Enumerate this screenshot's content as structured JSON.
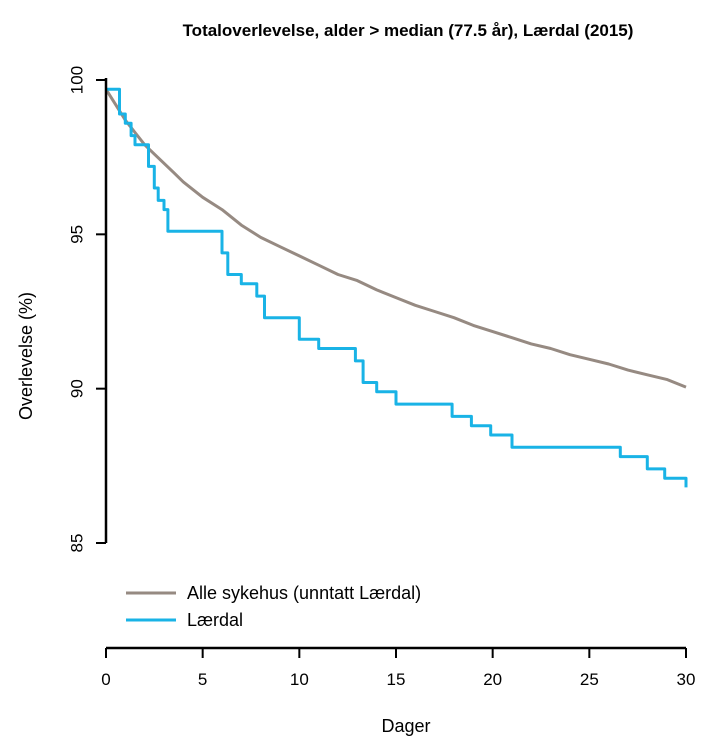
{
  "chart_data": {
    "type": "line",
    "title": "Totaloverlevelse, alder > median (77.5 år), Lærdal (2015)",
    "xlabel": "Dager",
    "ylabel": "Overlevelse (%)",
    "xlim": [
      0,
      30
    ],
    "ylim": [
      85,
      100
    ],
    "xticks": [
      0,
      5,
      10,
      15,
      20,
      25,
      30
    ],
    "yticks": [
      85,
      90,
      95,
      100
    ],
    "grid": false,
    "legend_position": "bottom-left",
    "series": [
      {
        "name": "Alle sykehus (unntatt Lærdal)",
        "color": "#968a82",
        "step": false,
        "x": [
          0,
          0.5,
          1,
          1.5,
          2,
          2.5,
          3,
          3.5,
          4,
          5,
          6,
          7,
          8,
          9,
          10,
          11,
          12,
          13,
          14,
          15,
          16,
          17,
          18,
          19,
          20,
          21,
          22,
          23,
          24,
          25,
          26,
          27,
          28,
          29,
          30
        ],
        "y": [
          99.7,
          99.2,
          98.7,
          98.3,
          97.9,
          97.6,
          97.3,
          97.0,
          96.7,
          96.2,
          95.8,
          95.3,
          94.9,
          94.6,
          94.3,
          94.0,
          93.7,
          93.5,
          93.2,
          92.95,
          92.7,
          92.5,
          92.3,
          92.05,
          91.85,
          91.65,
          91.45,
          91.3,
          91.1,
          90.95,
          90.8,
          90.6,
          90.45,
          90.3,
          90.05
        ]
      },
      {
        "name": "Lærdal",
        "color": "#19b3e6",
        "step": true,
        "x": [
          0,
          0.7,
          1.0,
          1.3,
          1.5,
          2.2,
          2.5,
          2.7,
          3.0,
          3.2,
          6.0,
          6.3,
          7.0,
          7.8,
          8.2,
          10.0,
          11.0,
          12.9,
          13.3,
          14.0,
          15.0,
          17.9,
          18.9,
          19.9,
          21.0,
          26.6,
          28.0,
          28.9,
          30.0
        ],
        "y": [
          99.7,
          98.9,
          98.6,
          98.2,
          97.9,
          97.2,
          96.5,
          96.1,
          95.8,
          95.1,
          94.4,
          93.7,
          93.4,
          93.0,
          92.3,
          91.6,
          91.3,
          90.9,
          90.2,
          89.9,
          89.5,
          89.1,
          88.8,
          88.5,
          88.1,
          87.8,
          87.4,
          87.1,
          86.8
        ]
      }
    ]
  }
}
